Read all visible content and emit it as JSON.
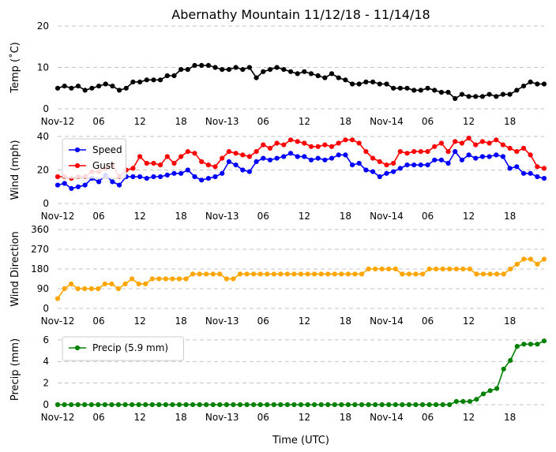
{
  "title": "Abernathy Mountain 11/12/18 - 11/14/18",
  "x_label": "Time (UTC)",
  "x_ticks": [
    "Nov-12",
    "06",
    "12",
    "18",
    "Nov-13",
    "06",
    "12",
    "18",
    "Nov-14",
    "06",
    "12",
    "18"
  ],
  "x_tick_hours": [
    0,
    6,
    12,
    18,
    24,
    30,
    36,
    42,
    48,
    54,
    60,
    66
  ],
  "x_range_hours": [
    0,
    71
  ],
  "colors": {
    "temp": "#000000",
    "speed": "#0000ff",
    "gust": "#ff0000",
    "direction": "#ffa500",
    "precip": "#008000",
    "grid": "#b0b0b0"
  },
  "chart_data": [
    {
      "id": "temp",
      "type": "line",
      "ylabel": "Temp (˚C)",
      "ylim": [
        0,
        20
      ],
      "yticks": [
        "0",
        "10",
        "20"
      ],
      "ytick_values": [
        0,
        10,
        20
      ],
      "series": [
        {
          "name": "Temp",
          "color_key": "temp",
          "values": [
            5,
            5.5,
            5,
            5.5,
            4.5,
            5,
            5.5,
            6,
            5.5,
            4.5,
            5,
            6.5,
            6.5,
            7,
            7,
            7,
            8,
            8,
            9.5,
            9.5,
            10.5,
            10.5,
            10.5,
            10,
            9.5,
            9.5,
            10,
            9.5,
            10,
            7.5,
            9,
            9.5,
            10,
            9.5,
            9,
            8.5,
            9,
            8.5,
            8,
            7.5,
            8.5,
            7.5,
            7,
            6,
            6,
            6.5,
            6.5,
            6,
            6,
            5,
            5,
            5,
            4.5,
            4.5,
            5,
            4.5,
            4,
            4,
            2.5,
            3.5,
            3,
            3,
            3,
            3.5,
            3,
            3.5,
            3.5,
            4.5,
            5.5,
            6.5,
            6,
            6
          ]
        }
      ]
    },
    {
      "id": "wind",
      "type": "line",
      "ylabel": "Wind (mph)",
      "ylim": [
        0,
        40
      ],
      "yticks": [
        "0",
        "20",
        "40"
      ],
      "ytick_values": [
        0,
        20,
        40
      ],
      "legend": "top-left",
      "series": [
        {
          "name": "Speed",
          "color_key": "speed",
          "values": [
            11,
            12,
            9,
            10,
            11,
            15,
            13,
            17,
            13,
            11,
            16,
            16,
            16,
            15,
            16,
            16,
            17,
            18,
            18,
            20,
            16,
            14,
            15,
            16,
            18,
            25,
            23,
            20,
            19,
            25,
            27,
            26,
            27,
            28,
            30,
            28,
            28,
            26,
            27,
            26,
            27,
            29,
            29,
            23,
            24,
            20,
            19,
            16,
            18,
            19,
            21,
            23,
            23,
            23,
            23,
            26,
            26,
            24,
            31,
            26,
            29,
            27,
            28,
            28,
            29,
            28,
            21,
            22,
            18,
            18,
            16,
            15
          ]
        },
        {
          "name": "Gust",
          "color_key": "gust",
          "values": [
            16,
            16,
            15,
            16,
            16,
            19,
            19,
            21,
            23,
            16,
            20,
            21,
            28,
            24,
            24,
            23,
            28,
            24,
            28,
            31,
            30,
            25,
            23,
            22,
            27,
            31,
            30,
            29,
            28,
            31,
            35,
            33,
            36,
            35,
            38,
            37,
            36,
            34,
            34,
            35,
            34,
            36,
            38,
            38,
            36,
            31,
            27,
            25,
            23,
            24,
            31,
            30,
            31,
            31,
            31,
            34,
            36,
            31,
            37,
            36,
            39,
            35,
            37,
            36,
            38,
            35,
            33,
            31,
            33,
            29,
            22,
            21
          ]
        }
      ]
    },
    {
      "id": "direction",
      "type": "line",
      "ylabel": "Wind Direction",
      "ylim": [
        0,
        360
      ],
      "yticks": [
        "0",
        "90",
        "180",
        "270",
        "360"
      ],
      "ytick_values": [
        0,
        90,
        180,
        270,
        360
      ],
      "series": [
        {
          "name": "Direction",
          "color_key": "direction",
          "values": [
            45,
            90,
            112,
            90,
            90,
            90,
            90,
            112,
            112,
            90,
            112,
            135,
            112,
            112,
            135,
            135,
            135,
            135,
            135,
            135,
            157,
            157,
            157,
            157,
            157,
            135,
            135,
            157,
            157,
            157,
            157,
            157,
            157,
            157,
            157,
            157,
            157,
            157,
            157,
            157,
            157,
            157,
            157,
            157,
            157,
            157,
            180,
            180,
            180,
            180,
            180,
            157,
            157,
            157,
            157,
            180,
            180,
            180,
            180,
            180,
            180,
            180,
            157,
            157,
            157,
            157,
            157,
            180,
            202,
            225,
            225,
            202,
            225
          ]
        }
      ]
    },
    {
      "id": "precip",
      "type": "line",
      "ylabel": "Precip (mm)",
      "ylim": [
        0,
        6.5
      ],
      "yticks": [
        "0",
        "2",
        "4",
        "6"
      ],
      "ytick_values": [
        0,
        2,
        4,
        6
      ],
      "legend": "top-left",
      "series": [
        {
          "name": "Precip (5.9 mm)",
          "color_key": "precip",
          "values": [
            0,
            0,
            0,
            0,
            0,
            0,
            0,
            0,
            0,
            0,
            0,
            0,
            0,
            0,
            0,
            0,
            0,
            0,
            0,
            0,
            0,
            0,
            0,
            0,
            0,
            0,
            0,
            0,
            0,
            0,
            0,
            0,
            0,
            0,
            0,
            0,
            0,
            0,
            0,
            0,
            0,
            0,
            0,
            0,
            0,
            0,
            0,
            0,
            0,
            0,
            0,
            0,
            0,
            0,
            0,
            0,
            0,
            0,
            0,
            0.3,
            0.3,
            0.3,
            0.5,
            1.0,
            1.3,
            1.5,
            3.3,
            4.1,
            5.4,
            5.6,
            5.6,
            5.6,
            5.9
          ]
        }
      ]
    }
  ]
}
